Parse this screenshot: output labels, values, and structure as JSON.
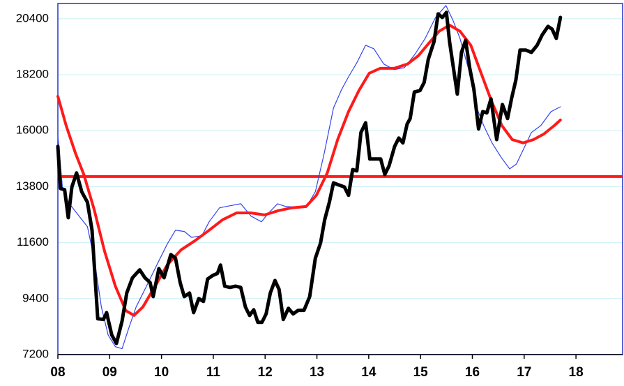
{
  "chart_data": {
    "type": "line",
    "xlim": [
      2008,
      2018.9
    ],
    "xticks": [
      {
        "value": 2008,
        "label": "08"
      },
      {
        "value": 2009,
        "label": "09"
      },
      {
        "value": 2010,
        "label": "10"
      },
      {
        "value": 2011,
        "label": "11"
      },
      {
        "value": 2012,
        "label": "12"
      },
      {
        "value": 2013,
        "label": "13"
      },
      {
        "value": 2014,
        "label": "14"
      },
      {
        "value": 2015,
        "label": "15"
      },
      {
        "value": 2016,
        "label": "16"
      },
      {
        "value": 2017,
        "label": "17"
      },
      {
        "value": 2018,
        "label": "18"
      }
    ],
    "ylim": [
      7200,
      21000
    ],
    "yticks": [
      7200,
      9400,
      11600,
      13800,
      16000,
      18200,
      20400
    ],
    "grid": true,
    "reference_line": {
      "value": 14200,
      "color": "#ff1a1a"
    },
    "series": [
      {
        "color": "#3344ee",
        "width": 1.2,
        "x": [
          2008,
          2008.09,
          2008.2,
          2008.36,
          2008.57,
          2008.7,
          2008.84,
          2008.97,
          2009.11,
          2009.24,
          2009.37,
          2009.51,
          2009.71,
          2009.91,
          2010.11,
          2010.27,
          2010.44,
          2010.58,
          2010.78,
          2010.92,
          2011.12,
          2011.32,
          2011.53,
          2011.73,
          2011.93,
          2012.07,
          2012.24,
          2012.4,
          2012.6,
          2012.8,
          2012.97,
          2013.14,
          2013.32,
          2013.48,
          2013.61,
          2013.77,
          2013.94,
          2014.1,
          2014.29,
          2014.49,
          2014.69,
          2014.89,
          2015.09,
          2015.29,
          2015.49,
          2015.63,
          2015.76,
          2015.93,
          2016.06,
          2016.22,
          2016.38,
          2016.55,
          2016.72,
          2016.85,
          2016.98,
          2017.14,
          2017.32,
          2017.52,
          2017.7
        ],
        "values": [
          15790,
          13730,
          13190,
          12770,
          12230,
          10990,
          9070,
          7970,
          7510,
          7430,
          8250,
          9070,
          9890,
          10720,
          11540,
          12090,
          12040,
          11810,
          11870,
          12420,
          12970,
          13050,
          13130,
          12640,
          12420,
          12770,
          13130,
          13020,
          13000,
          13020,
          13600,
          15110,
          16890,
          17630,
          18120,
          18670,
          19360,
          19220,
          18620,
          18400,
          18480,
          19000,
          19630,
          20450,
          20920,
          20320,
          19630,
          18400,
          17030,
          16200,
          15520,
          14970,
          14500,
          14690,
          15240,
          15930,
          16200,
          16750,
          16940
        ]
      },
      {
        "color": "#ff1a1a",
        "width": 4,
        "x": [
          2008,
          2008.16,
          2008.34,
          2008.5,
          2008.7,
          2008.9,
          2009.11,
          2009.31,
          2009.47,
          2009.64,
          2009.84,
          2010.11,
          2010.38,
          2010.65,
          2010.92,
          2011.18,
          2011.45,
          2011.72,
          2011.99,
          2012.26,
          2012.52,
          2012.79,
          2012.99,
          2013.2,
          2013.4,
          2013.61,
          2013.81,
          2014.01,
          2014.22,
          2014.49,
          2014.75,
          2014.96,
          2015.16,
          2015.36,
          2015.56,
          2015.76,
          2015.97,
          2016.17,
          2016.37,
          2016.57,
          2016.77,
          2016.98,
          2017.18,
          2017.38,
          2017.58,
          2017.7
        ],
        "values": [
          17350,
          16200,
          15110,
          14280,
          12910,
          11270,
          9890,
          8930,
          8740,
          9070,
          9760,
          10720,
          11320,
          11680,
          12090,
          12500,
          12770,
          12770,
          12690,
          12860,
          12970,
          13020,
          13460,
          14340,
          15650,
          16750,
          17580,
          18260,
          18450,
          18450,
          18620,
          18950,
          19440,
          19910,
          20150,
          19910,
          19360,
          18260,
          17160,
          16200,
          15650,
          15520,
          15650,
          15870,
          16200,
          16420
        ]
      },
      {
        "color": "#000000",
        "width": 5,
        "x": [
          2008,
          2008.05,
          2008.13,
          2008.2,
          2008.27,
          2008.36,
          2008.46,
          2008.57,
          2008.66,
          2008.77,
          2008.88,
          2008.94,
          2009.04,
          2009.13,
          2009.24,
          2009.33,
          2009.44,
          2009.58,
          2009.68,
          2009.78,
          2009.84,
          2009.95,
          2010.05,
          2010.18,
          2010.27,
          2010.36,
          2010.44,
          2010.54,
          2010.62,
          2010.72,
          2010.81,
          2010.89,
          2010.99,
          2011.08,
          2011.14,
          2011.22,
          2011.32,
          2011.43,
          2011.53,
          2011.62,
          2011.7,
          2011.78,
          2011.86,
          2011.94,
          2012.02,
          2012.1,
          2012.19,
          2012.27,
          2012.35,
          2012.45,
          2012.54,
          2012.64,
          2012.75,
          2012.86,
          2012.97,
          2013.07,
          2013.15,
          2013.24,
          2013.32,
          2013.42,
          2013.53,
          2013.61,
          2013.69,
          2013.77,
          2013.85,
          2013.94,
          2014.02,
          2014.12,
          2014.23,
          2014.31,
          2014.39,
          2014.5,
          2014.58,
          2014.66,
          2014.74,
          2014.8,
          2014.88,
          2014.99,
          2015.07,
          2015.15,
          2015.26,
          2015.34,
          2015.42,
          2015.5,
          2015.56,
          2015.66,
          2015.71,
          2015.79,
          2015.87,
          2015.95,
          2016.03,
          2016.12,
          2016.2,
          2016.28,
          2016.36,
          2016.47,
          2016.58,
          2016.68,
          2016.76,
          2016.84,
          2016.92,
          2017.03,
          2017.14,
          2017.25,
          2017.35,
          2017.46,
          2017.54,
          2017.62,
          2017.7
        ],
        "values": [
          15380,
          13730,
          13680,
          12580,
          13790,
          14340,
          13600,
          13190,
          12090,
          8610,
          8580,
          8850,
          7970,
          7640,
          8520,
          9620,
          10220,
          10530,
          10220,
          10030,
          9480,
          10580,
          10220,
          11130,
          10990,
          10030,
          9480,
          9620,
          8850,
          9400,
          9290,
          10170,
          10310,
          10390,
          10720,
          9890,
          9840,
          9890,
          9840,
          9070,
          8740,
          8960,
          8470,
          8470,
          8800,
          9620,
          10110,
          9760,
          8580,
          9020,
          8800,
          8940,
          8940,
          9480,
          10990,
          11590,
          12500,
          13190,
          13950,
          13870,
          13790,
          13460,
          14470,
          14420,
          15930,
          16310,
          14890,
          14890,
          14890,
          14280,
          14610,
          15380,
          15710,
          15520,
          16260,
          16480,
          17520,
          17580,
          17900,
          18810,
          19500,
          20590,
          20450,
          20650,
          19500,
          18120,
          17440,
          19080,
          19550,
          18450,
          17630,
          16070,
          16750,
          16700,
          17250,
          15650,
          17030,
          16480,
          17300,
          17990,
          19170,
          19170,
          19080,
          19360,
          19770,
          20100,
          19990,
          19630,
          20450
        ]
      }
    ]
  }
}
